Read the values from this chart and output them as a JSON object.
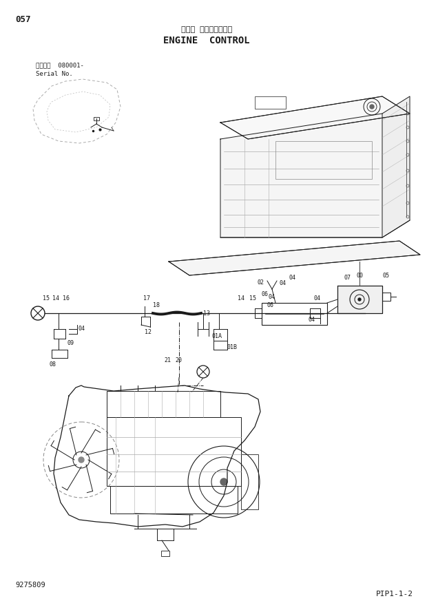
{
  "title_japanese": "エンジ ンコントロール",
  "title_english": "ENGINE  CONTROL",
  "page_number": "057",
  "serial_info_line1": "適用号機  080001-",
  "serial_info_line2": "Serial No.",
  "drawing_number": "9275809",
  "page_ref": "PIP1-1-2",
  "bg_color": "#ffffff",
  "line_color": "#1a1a1a",
  "gray_color": "#666666"
}
